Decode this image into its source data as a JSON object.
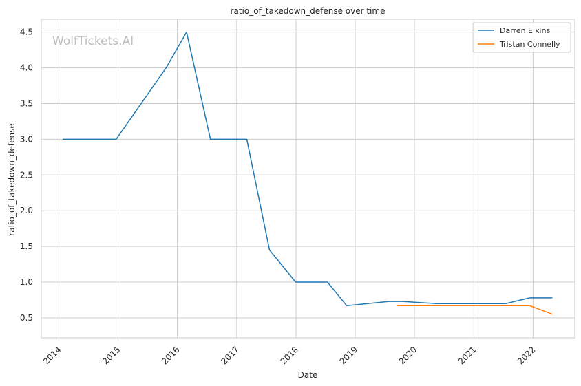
{
  "chart_data": {
    "type": "line",
    "title": "ratio_of_takedown_defense over time",
    "xlabel": "Date",
    "ylabel": "ratio_of_takedown_defense",
    "watermark": "WolfTickets.AI",
    "x_ticks": [
      "2014",
      "2015",
      "2016",
      "2017",
      "2018",
      "2019",
      "2020",
      "2021",
      "2022"
    ],
    "y_ticks": [
      "0.5",
      "1.0",
      "1.5",
      "2.0",
      "2.5",
      "3.0",
      "3.5",
      "4.0",
      "4.5"
    ],
    "xlim": [
      "2013-09-15",
      "2022-09-15"
    ],
    "ylim": [
      0.22,
      4.68
    ],
    "grid": true,
    "legend_position": "top-right",
    "series": [
      {
        "name": "Darren Elkins",
        "color": "#1f77b4",
        "points": [
          {
            "x": "2014-01-25",
            "y": 3.0
          },
          {
            "x": "2014-12-20",
            "y": 3.0
          },
          {
            "x": "2015-10-24",
            "y": 4.0
          },
          {
            "x": "2016-02-27",
            "y": 4.5
          },
          {
            "x": "2016-07-23",
            "y": 3.0
          },
          {
            "x": "2017-03-04",
            "y": 3.0
          },
          {
            "x": "2017-07-22",
            "y": 1.45
          },
          {
            "x": "2017-12-30",
            "y": 1.0
          },
          {
            "x": "2018-07-14",
            "y": 1.0
          },
          {
            "x": "2018-11-10",
            "y": 0.67
          },
          {
            "x": "2019-07-27",
            "y": 0.73
          },
          {
            "x": "2019-10-19",
            "y": 0.73
          },
          {
            "x": "2020-05-16",
            "y": 0.7
          },
          {
            "x": "2021-07-17",
            "y": 0.7
          },
          {
            "x": "2021-12-11",
            "y": 0.78
          },
          {
            "x": "2022-04-30",
            "y": 0.78
          }
        ]
      },
      {
        "name": "Tristan Connelly",
        "color": "#ff7f0e",
        "points": [
          {
            "x": "2019-09-14",
            "y": 0.67
          },
          {
            "x": "2021-12-11",
            "y": 0.67
          },
          {
            "x": "2022-04-30",
            "y": 0.55
          }
        ]
      }
    ]
  }
}
